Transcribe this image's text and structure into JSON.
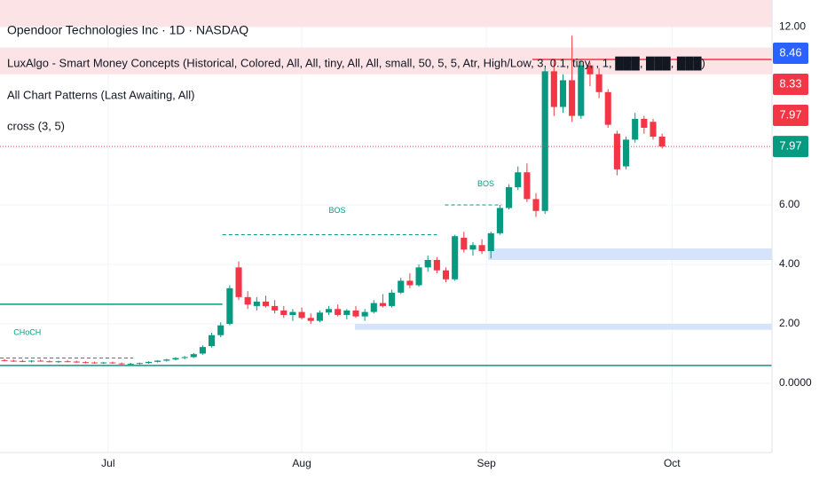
{
  "chart_data": {
    "type": "candlestick",
    "title": "Opendoor Technologies Inc · 1D · NASDAQ",
    "indicators": [
      "LuxAlgo - Smart Money Concepts (Historical, Colored, All, All, tiny, All, All, small, 50, 5, 5, Atr, High/Low, 3, 0.1, tiny, , 1, ███, ███, ███)",
      "All Chart Patterns (Last Awaiting, All)",
      "cross (3, 5)"
    ],
    "up_color": "#089981",
    "down_color": "#f23645",
    "open": [
      0.78,
      0.76,
      0.75,
      0.73,
      0.76,
      0.74,
      0.72,
      0.74,
      0.73,
      0.71,
      0.7,
      0.68,
      0.7,
      0.67,
      0.65,
      0.66,
      0.68,
      0.72,
      0.76,
      0.8,
      0.85,
      0.88,
      1.0,
      1.25,
      1.62,
      2.0,
      3.9,
      2.9,
      2.6,
      2.75,
      2.6,
      2.45,
      2.3,
      2.4,
      2.2,
      2.1,
      2.38,
      2.5,
      2.3,
      2.45,
      2.25,
      2.4,
      2.7,
      2.6,
      3.05,
      3.45,
      3.3,
      3.9,
      4.15,
      3.8,
      3.5,
      4.9,
      4.5,
      4.65,
      4.45,
      5.05,
      5.9,
      6.6,
      7.1,
      6.2,
      5.8,
      10.5,
      9.3,
      10.2,
      9.0,
      10.7,
      10.4,
      9.8,
      8.4,
      7.3,
      8.2,
      8.9,
      8.8,
      8.3
    ],
    "high": [
      0.82,
      0.8,
      0.79,
      0.78,
      0.8,
      0.77,
      0.76,
      0.78,
      0.76,
      0.74,
      0.73,
      0.72,
      0.73,
      0.7,
      0.69,
      0.7,
      0.74,
      0.78,
      0.82,
      0.88,
      0.92,
      1.02,
      1.28,
      1.7,
      2.05,
      3.3,
      4.1,
      3.1,
      2.9,
      2.95,
      2.8,
      2.6,
      2.5,
      2.55,
      2.35,
      2.45,
      2.6,
      2.65,
      2.5,
      2.6,
      2.5,
      2.8,
      3.0,
      3.15,
      3.55,
      3.7,
      4.0,
      4.3,
      4.25,
      3.9,
      5.0,
      5.1,
      4.75,
      4.85,
      5.1,
      6.0,
      6.7,
      7.3,
      7.4,
      6.4,
      10.6,
      10.9,
      10.4,
      11.7,
      10.9,
      10.8,
      10.6,
      9.9,
      8.5,
      8.3,
      9.1,
      9.0,
      8.9,
      8.4
    ],
    "low": [
      0.74,
      0.72,
      0.71,
      0.7,
      0.73,
      0.7,
      0.69,
      0.71,
      0.69,
      0.67,
      0.66,
      0.65,
      0.66,
      0.63,
      0.62,
      0.63,
      0.66,
      0.7,
      0.73,
      0.77,
      0.81,
      0.85,
      0.96,
      1.2,
      1.55,
      1.95,
      2.8,
      2.5,
      2.45,
      2.55,
      2.35,
      2.2,
      2.1,
      2.15,
      2.0,
      2.05,
      2.3,
      2.25,
      2.15,
      2.2,
      2.1,
      2.35,
      2.55,
      2.55,
      3.0,
      3.2,
      3.25,
      3.75,
      3.7,
      3.4,
      3.45,
      4.4,
      4.3,
      4.35,
      4.2,
      5.0,
      5.85,
      6.5,
      6.1,
      5.6,
      5.7,
      9.0,
      9.1,
      8.8,
      8.9,
      10.0,
      9.6,
      8.6,
      7.0,
      7.2,
      8.1,
      8.4,
      8.2,
      7.9
    ],
    "close": [
      0.76,
      0.75,
      0.73,
      0.76,
      0.74,
      0.72,
      0.74,
      0.73,
      0.71,
      0.7,
      0.68,
      0.7,
      0.67,
      0.65,
      0.66,
      0.68,
      0.72,
      0.76,
      0.8,
      0.85,
      0.88,
      0.98,
      1.22,
      1.62,
      1.95,
      3.2,
      2.9,
      2.65,
      2.75,
      2.6,
      2.45,
      2.3,
      2.4,
      2.2,
      2.1,
      2.38,
      2.5,
      2.3,
      2.45,
      2.25,
      2.4,
      2.7,
      2.6,
      3.05,
      3.45,
      3.3,
      3.9,
      4.15,
      3.8,
      3.5,
      4.95,
      4.5,
      4.65,
      4.45,
      5.05,
      5.9,
      6.6,
      7.1,
      6.2,
      5.8,
      10.5,
      9.3,
      10.2,
      9.0,
      10.7,
      10.4,
      9.8,
      8.7,
      7.2,
      8.2,
      8.9,
      8.6,
      8.3,
      7.97
    ],
    "xlim": [
      -0.5,
      85.2
    ],
    "xticks": [
      {
        "value": 11.5,
        "label": "Jul"
      },
      {
        "value": 33.0,
        "label": "Aug"
      },
      {
        "value": 53.5,
        "label": "Sep"
      },
      {
        "value": 74.1,
        "label": "Oct"
      }
    ],
    "ylim": [
      -2.33,
      12.9
    ],
    "yticks": [
      {
        "value": 0,
        "label": "0.0000"
      },
      {
        "value": 2,
        "label": "2.00"
      },
      {
        "value": 4,
        "label": "4.00"
      },
      {
        "value": 6,
        "label": "6.00"
      },
      {
        "value": 12,
        "label": "12.00"
      }
    ],
    "grid": true,
    "last_price": {
      "value": 7.97,
      "label": "7.97",
      "color": "#089981"
    },
    "price_tags": [
      {
        "label": "8.46",
        "color": "#2962ff"
      },
      {
        "label": "8.33",
        "color": "#f23645"
      },
      {
        "label": "7.97",
        "color": "#f23645"
      }
    ],
    "zones": [
      {
        "low": 12.0,
        "high": 12.9,
        "from": -0.5,
        "color": "#fbe3e6"
      },
      {
        "low": 10.4,
        "high": 11.3,
        "from": -0.5,
        "color": "#fbe3e6"
      },
      {
        "low": 4.15,
        "high": 4.54,
        "from": 53.7,
        "color": "#d6e4fb"
      },
      {
        "low": 1.8,
        "high": 2.0,
        "from": 38.9,
        "color": "#d6e4fb"
      }
    ],
    "levels": [
      {
        "value": 0.6,
        "from": -0.5,
        "to": 85.2,
        "color": "#089981",
        "dash": false
      },
      {
        "value": 2.66,
        "from": -0.5,
        "to": 24.2,
        "color": "#089981",
        "dash": false
      },
      {
        "value": 10.9,
        "from": 58.6,
        "to": 85.2,
        "color": "#f23645",
        "dash": false
      },
      {
        "value": 0.85,
        "from": -0.5,
        "to": 14.3,
        "color": "#089981",
        "dash": true
      },
      {
        "value": 5.0,
        "from": 24.2,
        "to": 48.0,
        "color": "#089981",
        "dash": true
      },
      {
        "value": 6.0,
        "from": 48.9,
        "to": 55.2,
        "color": "#089981",
        "dash": true
      }
    ],
    "annotations": [
      {
        "text": "CHoCH",
        "x": 1.0,
        "y": 1.7
      },
      {
        "text": "BOS",
        "x": 36.0,
        "y": 5.8
      },
      {
        "text": "BOS",
        "x": 52.5,
        "y": 6.7
      }
    ]
  }
}
